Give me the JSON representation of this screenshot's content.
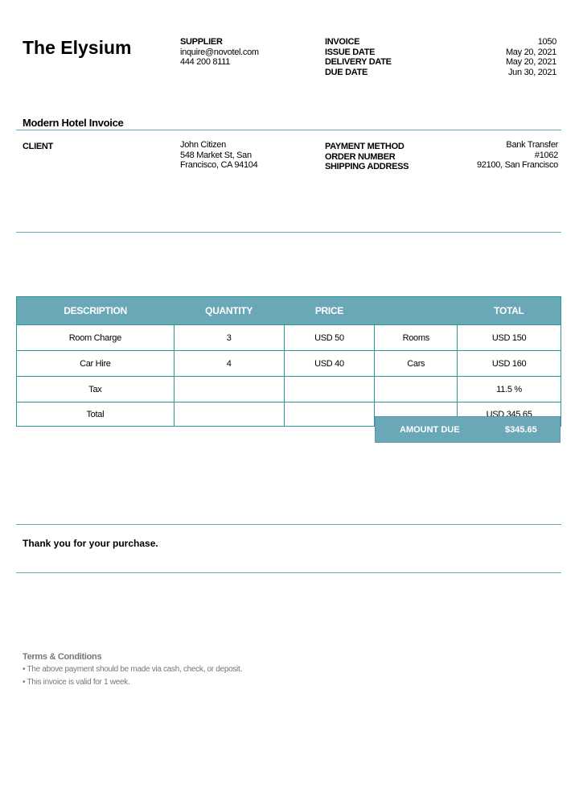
{
  "brand": "The Elysium",
  "supplier": {
    "label": "SUPPLIER",
    "email": "inquire@novotel.com",
    "phone": "444 200 8111"
  },
  "meta": [
    {
      "label": "INVOICE",
      "value": "1050"
    },
    {
      "label": "ISSUE DATE",
      "value": "May 20, 2021"
    },
    {
      "label": "DELIVERY DATE",
      "value": "May 20, 2021"
    },
    {
      "label": "DUE DATE",
      "value": "Jun 30, 2021"
    }
  ],
  "title": "Modern Hotel Invoice",
  "client": {
    "label": "CLIENT",
    "name": "John Citizen",
    "address1": "548 Market St, San",
    "address2": "Francisco, CA 94104"
  },
  "order": [
    {
      "label": "PAYMENT METHOD",
      "value": "Bank Transfer"
    },
    {
      "label": "ORDER NUMBER",
      "value": "#1062"
    },
    {
      "label": "SHIPPING ADDRESS",
      "value": "92100, San Francisco"
    }
  ],
  "table": {
    "headers": [
      "DESCRIPTION",
      "QUANTITY",
      "PRICE",
      "",
      "TOTAL"
    ],
    "rows": [
      [
        "Room Charge",
        "3",
        "USD 50",
        "Rooms",
        "USD 150"
      ],
      [
        "Car Hire",
        "4",
        "USD 40",
        "Cars",
        "USD 160"
      ],
      [
        "Tax",
        "",
        "",
        "",
        "11.5 %"
      ],
      [
        "Total",
        "",
        "",
        "",
        "USD 345.65"
      ]
    ]
  },
  "amount_due": {
    "label": "AMOUNT DUE",
    "value": "$345.65"
  },
  "thanks": "Thank you for your purchase.",
  "terms": {
    "title": "Terms & Conditions",
    "items": [
      "The above payment should be made via cash, check, or deposit.",
      "This invoice is valid for 1 week."
    ]
  },
  "colors": {
    "accent": "#6aa8b8",
    "table_border": "#2a9a95"
  }
}
